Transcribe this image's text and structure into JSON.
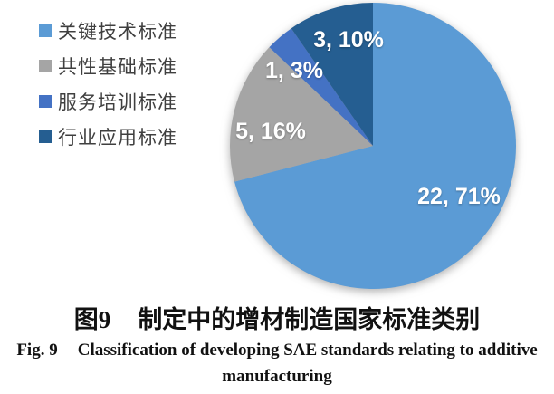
{
  "chart_data": {
    "type": "pie",
    "categories": [
      "关键技术标准",
      "共性基础标准",
      "服务培训标准",
      "行业应用标准"
    ],
    "values": [
      22,
      5,
      1,
      3
    ],
    "percents": [
      71,
      16,
      3,
      10
    ],
    "data_labels": [
      "22, 71%",
      "5, 16%",
      "1, 3%",
      "3, 10%"
    ],
    "colors": [
      "#5B9BD5",
      "#A5A5A5",
      "#4472C4",
      "#255E91"
    ],
    "label_color": "#FFFFFF",
    "start_angle_deg": 0,
    "direction": "clockwise",
    "legend_position": "left",
    "title": ""
  },
  "legend": {
    "items": [
      {
        "label": "关键技术标准",
        "color": "#5B9BD5"
      },
      {
        "label": "共性基础标准",
        "color": "#A5A5A5"
      },
      {
        "label": "服务培训标准",
        "color": "#4472C4"
      },
      {
        "label": "行业应用标准",
        "color": "#255E91"
      }
    ]
  },
  "caption": {
    "zh_fig_label": "图9",
    "zh_title": "制定中的增材制造国家标准类别",
    "en_fig_label": "Fig. 9",
    "en_title_line1": "Classification of developing SAE standards relating to additive",
    "en_title_line2": "manufacturing"
  }
}
